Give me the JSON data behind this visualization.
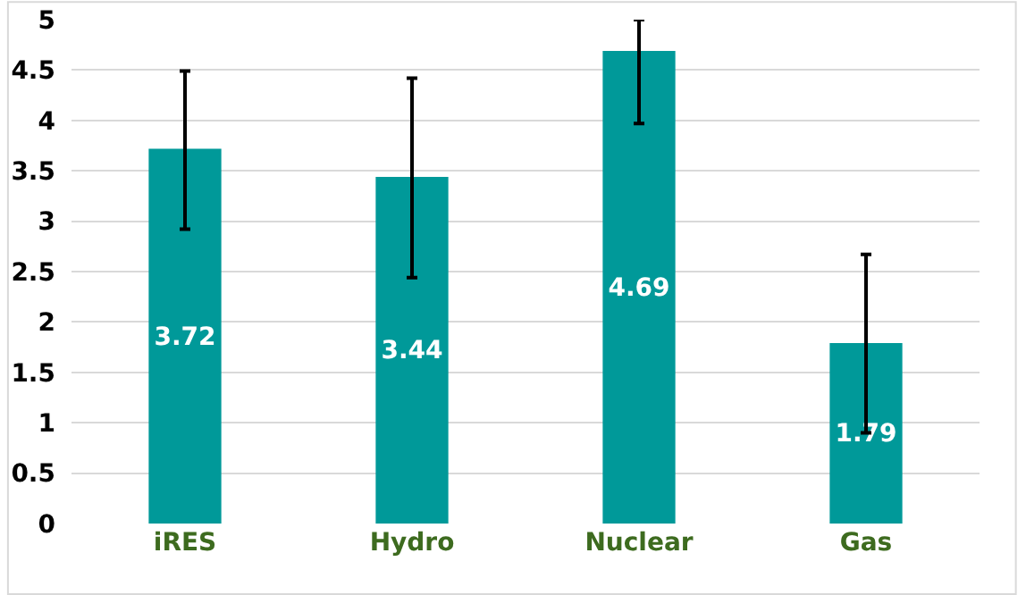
{
  "chart_data": {
    "type": "bar",
    "categories": [
      "iRES",
      "Hydro",
      "Nuclear",
      "Gas"
    ],
    "values": [
      3.72,
      3.44,
      4.69,
      1.79
    ],
    "errors": [
      [
        2.92,
        4.49
      ],
      [
        2.44,
        4.42
      ],
      [
        3.97,
        5.0
      ],
      [
        0.9,
        2.67
      ]
    ],
    "color": "#009999",
    "ylim": [
      0,
      5
    ],
    "yticks": [
      0,
      0.5,
      1,
      1.5,
      2,
      2.5,
      3,
      3.5,
      4,
      4.5,
      5
    ],
    "grid": "y",
    "data_labels": true
  }
}
